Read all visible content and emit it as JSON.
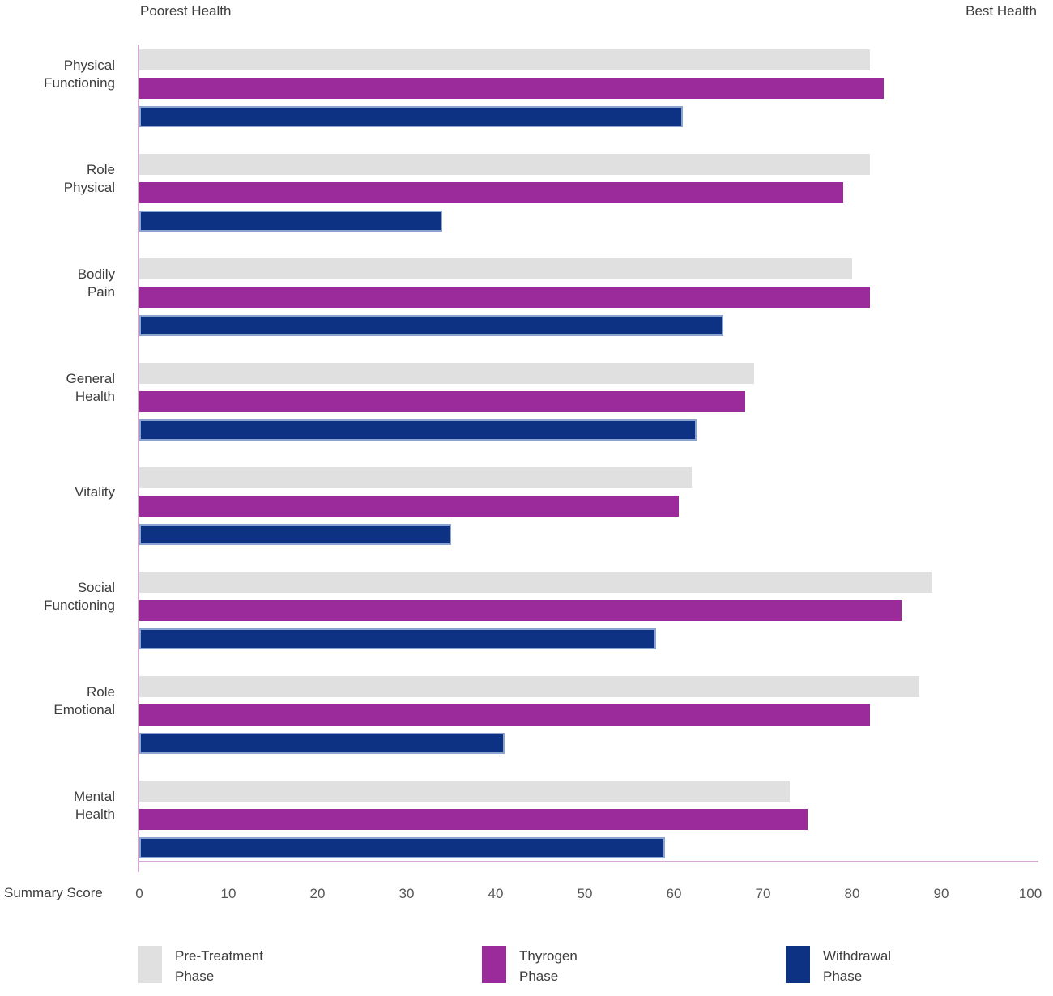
{
  "top_labels": {
    "left": "Poorest Health",
    "right": "Best Health"
  },
  "xaxis": {
    "label": "Summary Score",
    "ticks": [
      0,
      10,
      20,
      30,
      40,
      50,
      60,
      70,
      80,
      90,
      100
    ]
  },
  "legend": [
    {
      "key": "pre-treatment",
      "label": "Pre-Treatment\nPhase",
      "color": "#e0e0e0"
    },
    {
      "key": "thyrogen",
      "label": "Thyrogen\nPhase",
      "color": "#9b2a9b"
    },
    {
      "key": "withdrawal",
      "label": "Withdrawal\nPhase",
      "color": "#0d3183"
    }
  ],
  "colors": {
    "pre_treatment": "#e0e0e0",
    "thyrogen": "#9b2a9b",
    "withdrawal": "#0d3183",
    "withdrawal_border": "#8ba3cf",
    "axis_line": "#d5a9d3",
    "text": "#3d3d3d",
    "tick_text": "#565656"
  },
  "chart_data": {
    "type": "bar",
    "orientation": "horizontal",
    "title": "",
    "xlabel": "Summary Score",
    "ylabel": "",
    "xlim": [
      0,
      100
    ],
    "grid": false,
    "legend_position": "bottom",
    "annotations": [
      "Poorest Health",
      "Best Health"
    ],
    "categories": [
      {
        "key": "physical-functioning",
        "display": "Physical\nFunctioning"
      },
      {
        "key": "role-physical",
        "display": "Role\nPhysical"
      },
      {
        "key": "bodily-pain",
        "display": "Bodily\nPain"
      },
      {
        "key": "general-health",
        "display": "General\nHealth"
      },
      {
        "key": "vitality",
        "display": "Vitality"
      },
      {
        "key": "social-functioning",
        "display": "Social\nFunctioning"
      },
      {
        "key": "role-emotional",
        "display": "Role\nEmotional"
      },
      {
        "key": "mental-health",
        "display": "Mental\nHealth"
      }
    ],
    "series": [
      {
        "name": "Pre-Treatment Phase",
        "key": "pre-treatment",
        "color": "#e0e0e0",
        "values": [
          82,
          82,
          80,
          69,
          62,
          89,
          87.5,
          73
        ]
      },
      {
        "name": "Thyrogen Phase",
        "key": "thyrogen",
        "color": "#9b2a9b",
        "values": [
          83.5,
          79,
          82,
          68,
          60.5,
          85.5,
          82,
          75
        ]
      },
      {
        "name": "Withdrawal Phase",
        "key": "withdrawal",
        "color": "#0d3183",
        "values": [
          61,
          34,
          65.5,
          62.5,
          35,
          58,
          41,
          59
        ]
      }
    ]
  }
}
